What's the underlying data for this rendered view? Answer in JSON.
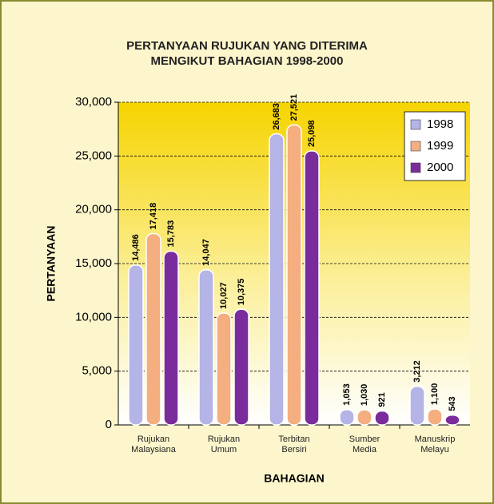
{
  "chart_data": {
    "type": "bar",
    "title": "PERTANYAAN RUJUKAN YANG DITERIMA MENGIKUT BAHAGIAN 1998-2000",
    "x_label": "BAHAGIAN",
    "y_label": "PERTANYAAN",
    "categories": [
      "Rujukan Malaysiana",
      "Rujukan Umum",
      "Terbitan Bersiri",
      "Sumber Media",
      "Manuskrip Melayu"
    ],
    "series": [
      {
        "name": "1998",
        "color": "#b4b4e6",
        "values": [
          14486,
          14047,
          26683,
          1053,
          3212
        ],
        "value_labels": [
          "14,486",
          "14,047",
          "26,683",
          "1,053",
          "3,212"
        ]
      },
      {
        "name": "1999",
        "color": "#f4ae80",
        "values": [
          17418,
          10027,
          27521,
          1030,
          1100
        ],
        "value_labels": [
          "17,418",
          "10,027",
          "27,521",
          "1,030",
          "1,100"
        ]
      },
      {
        "name": "2000",
        "color": "#7b2c9c",
        "values": [
          15783,
          10375,
          25098,
          921,
          543
        ],
        "value_labels": [
          "15,783",
          "10,375",
          "25,098",
          "921",
          "543"
        ]
      }
    ],
    "ylim": [
      0,
      30000
    ],
    "yticks": [
      {
        "value": 0,
        "label": "0"
      },
      {
        "value": 5000,
        "label": "5,000"
      },
      {
        "value": 10000,
        "label": "10,000"
      },
      {
        "value": 15000,
        "label": "15,000"
      },
      {
        "value": 20000,
        "label": "20,000"
      },
      {
        "value": 25000,
        "label": "25,000"
      },
      {
        "value": 30000,
        "label": "30,000"
      }
    ],
    "grid": true,
    "legend": "top-right"
  }
}
